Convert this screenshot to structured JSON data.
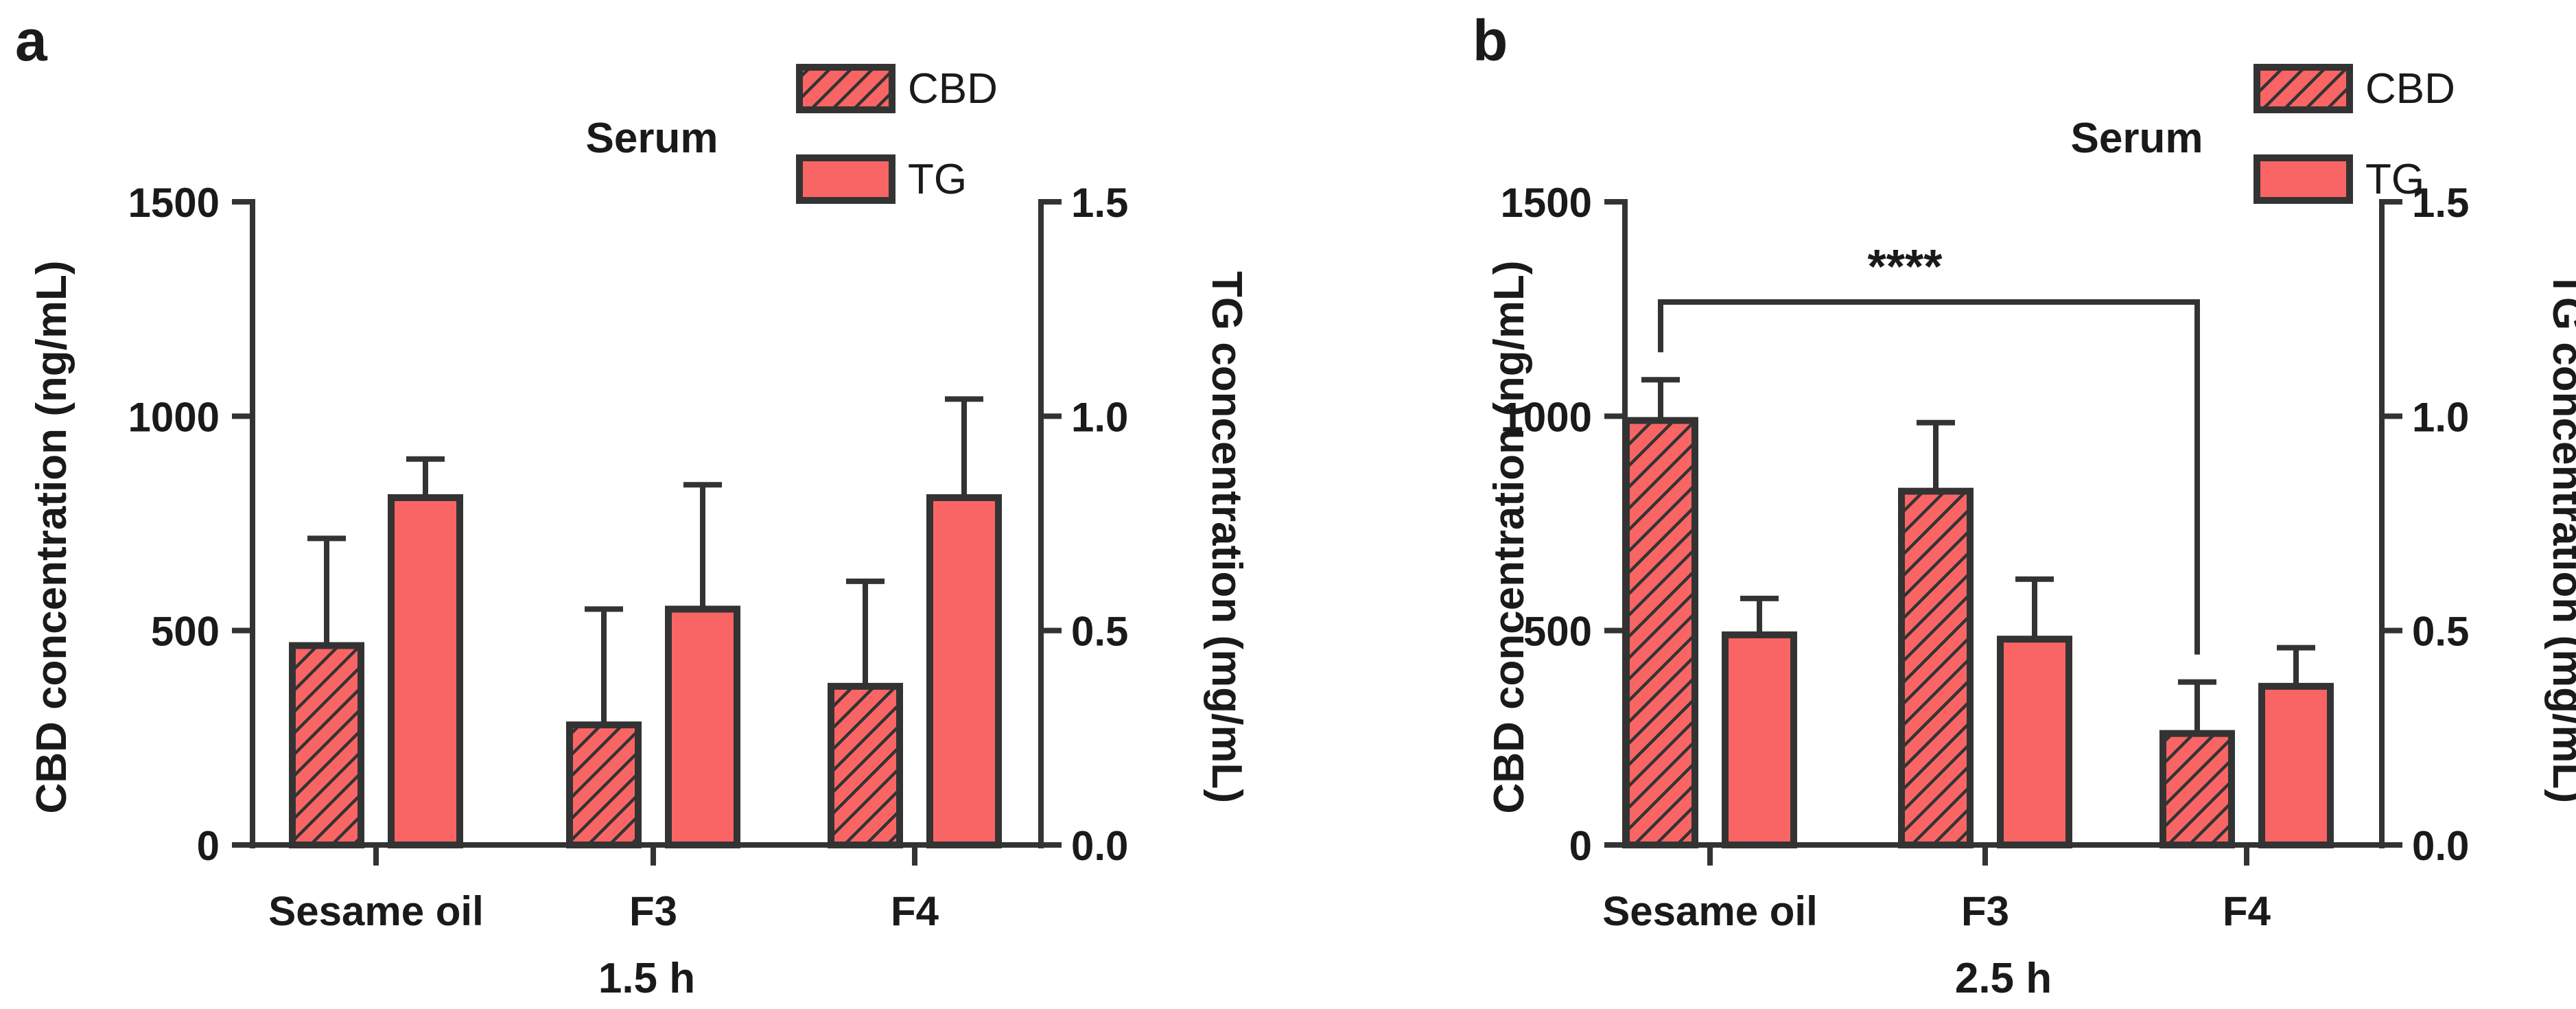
{
  "colors": {
    "bar_fill": "#F96565",
    "outline": "#333333",
    "hatch": "#333333",
    "text": "#1a1a1a"
  },
  "chart_data": [
    {
      "type": "bar",
      "panel_label": "a",
      "title": "Serum",
      "categories": [
        "Sesame oil",
        "F3",
        "F4"
      ],
      "xlabel": "1.5 h",
      "ylabel": "CBD concentration (ng/mL)",
      "ylabel_right": "TG concentration (mg/mL)",
      "ylim": [
        0,
        1500
      ],
      "yticks": [
        "0",
        "500",
        "1000",
        "1500"
      ],
      "ylim_right": [
        0,
        1.5
      ],
      "yticks_right": [
        "0.0",
        "0.5",
        "1.0",
        "1.5"
      ],
      "legend_position": "top-right",
      "series": [
        {
          "name": "CBD",
          "axis": "left",
          "pattern": "hatched",
          "values": [
            465,
            280,
            370
          ],
          "errors": [
            250,
            270,
            245
          ]
        },
        {
          "name": "TG",
          "axis": "right",
          "pattern": "solid",
          "values": [
            0.81,
            0.55,
            0.81
          ],
          "errors": [
            0.09,
            0.29,
            0.23
          ]
        }
      ],
      "annotations": []
    },
    {
      "type": "bar",
      "panel_label": "b",
      "title": "Serum",
      "categories": [
        "Sesame oil",
        "F3",
        "F4"
      ],
      "xlabel": "2.5 h",
      "ylabel": "CBD concentration (ng/mL)",
      "ylabel_right": "TG concentration (mg/mL)",
      "ylim": [
        0,
        1500
      ],
      "yticks": [
        "0",
        "500",
        "1000",
        "1500"
      ],
      "ylim_right": [
        0,
        1.5
      ],
      "yticks_right": [
        "0.0",
        "0.5",
        "1.0",
        "1.5"
      ],
      "legend_position": "top-right",
      "series": [
        {
          "name": "CBD",
          "axis": "left",
          "pattern": "hatched",
          "values": [
            990,
            825,
            260
          ],
          "errors": [
            95,
            160,
            120
          ]
        },
        {
          "name": "TG",
          "axis": "right",
          "pattern": "solid",
          "values": [
            0.49,
            0.48,
            0.37
          ],
          "errors": [
            0.085,
            0.14,
            0.09
          ]
        }
      ],
      "annotations": [
        {
          "text": "****",
          "from": [
            "Sesame oil",
            "CBD"
          ],
          "to": [
            "F4",
            "CBD"
          ]
        }
      ]
    }
  ]
}
